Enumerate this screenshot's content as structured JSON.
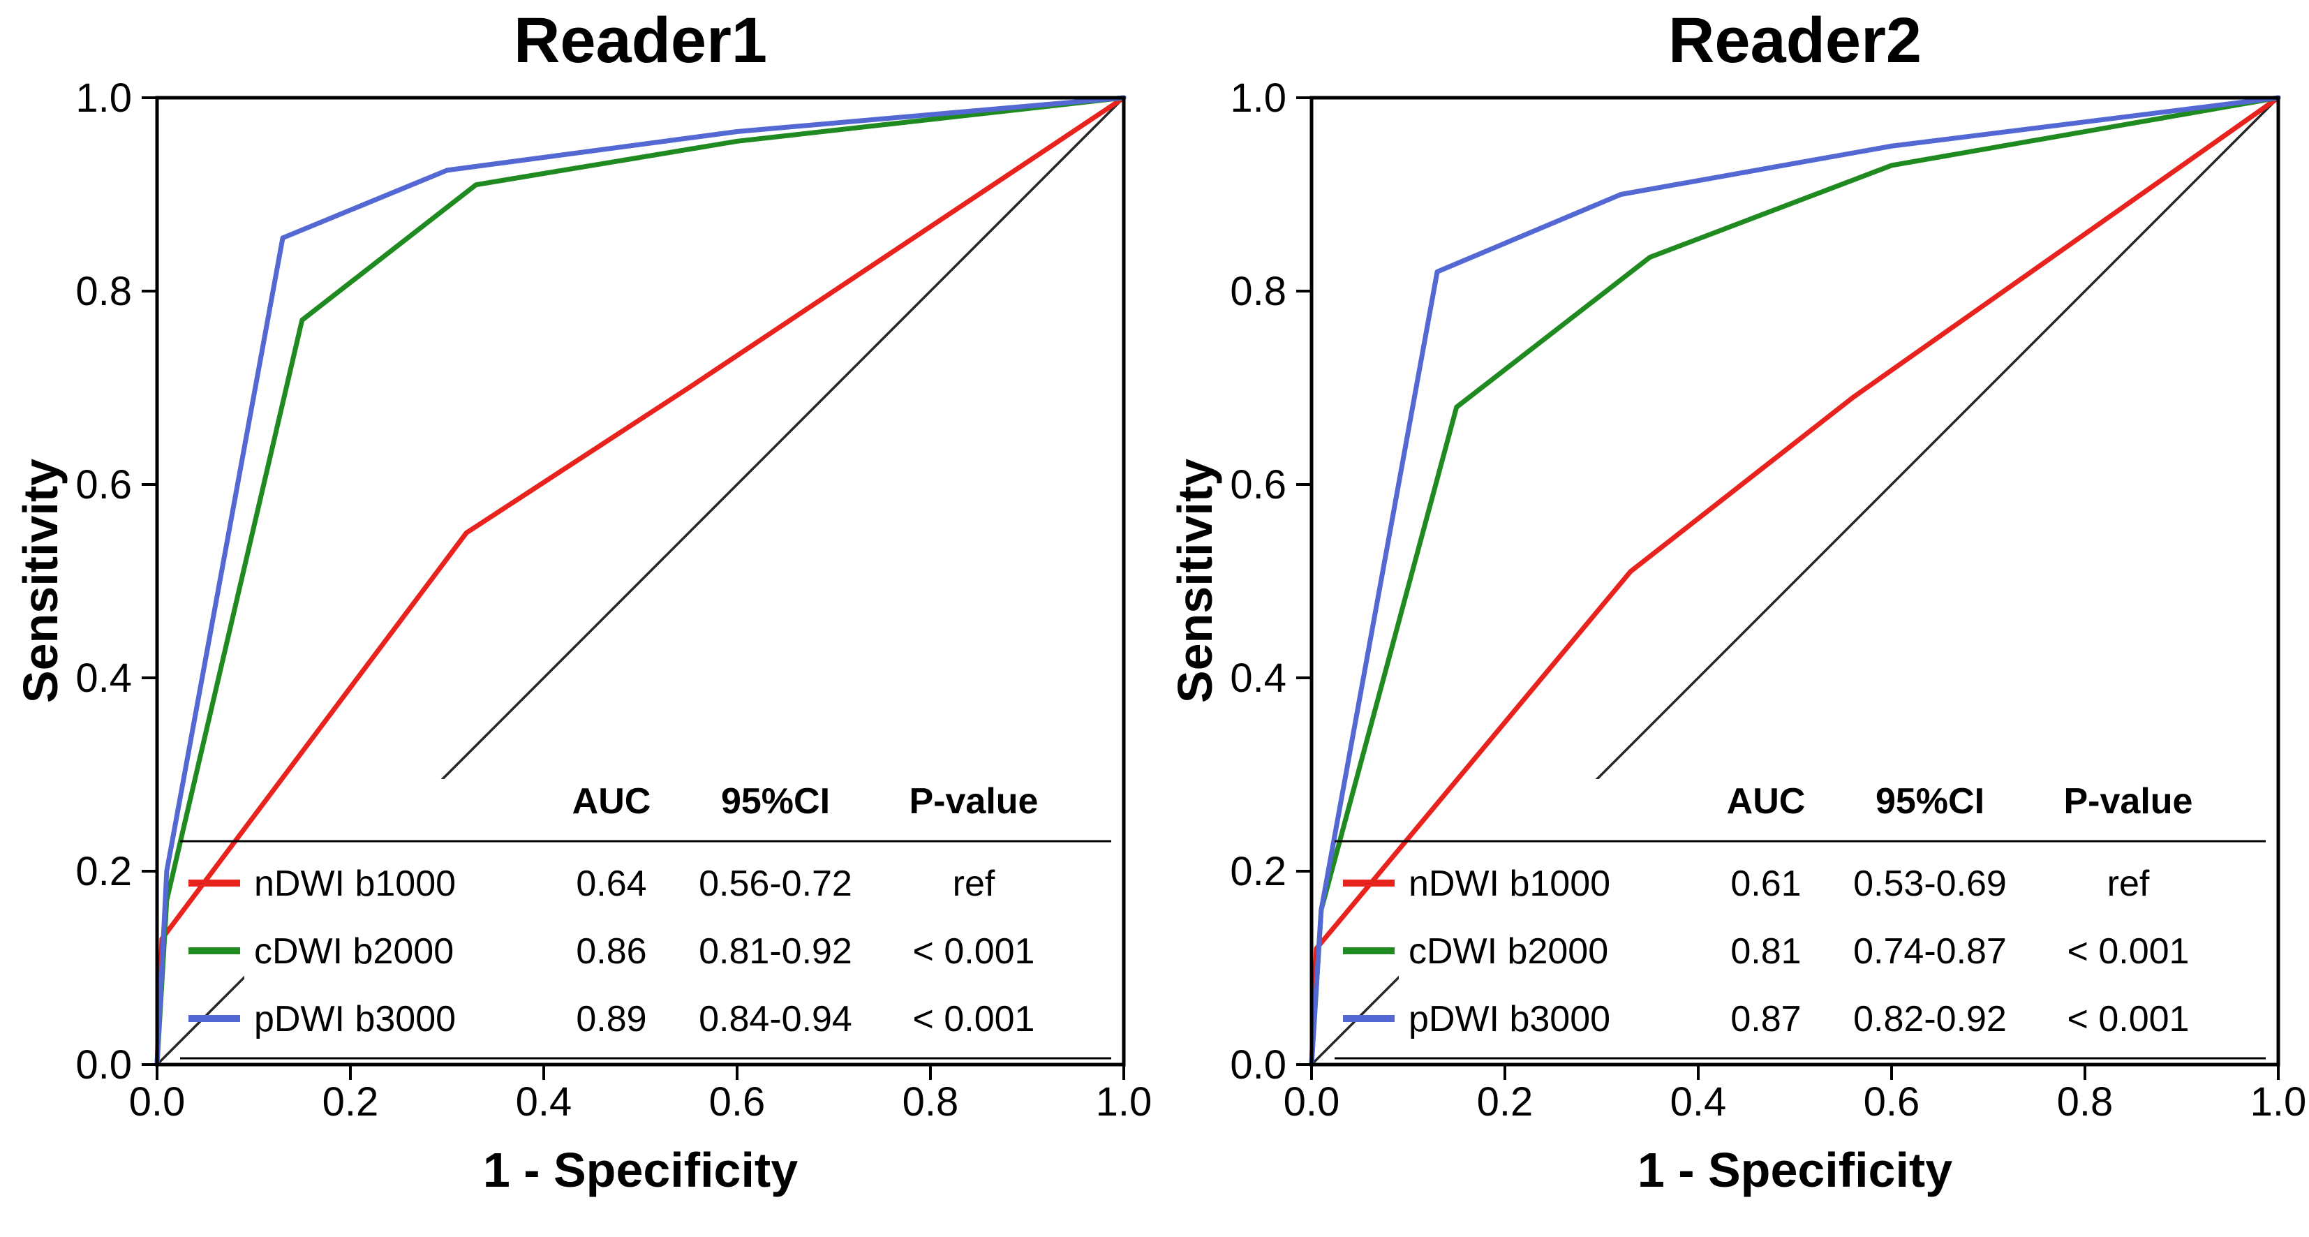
{
  "figure": {
    "x_tick_labels": [
      "0.0",
      "0.2",
      "0.4",
      "0.6",
      "0.8",
      "1.0"
    ],
    "y_tick_labels": [
      "0.0",
      "0.2",
      "0.4",
      "0.6",
      "0.8",
      "1.0"
    ]
  },
  "chart_data": [
    {
      "type": "line",
      "title": "Reader1",
      "xlabel": "1 - Specificity",
      "ylabel": "Sensitivity",
      "xlim": [
        0,
        1
      ],
      "ylim": [
        0,
        1
      ],
      "grid": false,
      "legend_position": "lower right",
      "legend_table": {
        "headers": [
          "AUC",
          "95%CI",
          "P-value"
        ],
        "rows": [
          {
            "label": "nDWI b1000",
            "color": "#e8231e",
            "auc": "0.64",
            "ci": "0.56-0.72",
            "p": "ref"
          },
          {
            "label": "cDWI b2000",
            "color": "#1f8a1f",
            "auc": "0.86",
            "ci": "0.81-0.92",
            "p": "< 0.001"
          },
          {
            "label": "pDWI b3000",
            "color": "#5468d4",
            "auc": "0.89",
            "ci": "0.84-0.94",
            "p": "< 0.001"
          }
        ]
      },
      "series": [
        {
          "name": "reference",
          "color": "#262626",
          "points": [
            [
              0,
              0
            ],
            [
              1,
              1
            ]
          ]
        },
        {
          "name": "nDWI b1000",
          "color": "#e8231e",
          "points": [
            [
              0,
              0
            ],
            [
              0.005,
              0.13
            ],
            [
              0.32,
              0.55
            ],
            [
              0.55,
              0.7
            ],
            [
              1,
              1
            ]
          ]
        },
        {
          "name": "cDWI b2000",
          "color": "#1f8a1f",
          "points": [
            [
              0,
              0
            ],
            [
              0.01,
              0.17
            ],
            [
              0.15,
              0.77
            ],
            [
              0.33,
              0.91
            ],
            [
              0.6,
              0.955
            ],
            [
              1,
              1
            ]
          ]
        },
        {
          "name": "pDWI b3000",
          "color": "#5468d4",
          "points": [
            [
              0,
              0
            ],
            [
              0.01,
              0.2
            ],
            [
              0.13,
              0.855
            ],
            [
              0.3,
              0.925
            ],
            [
              0.6,
              0.965
            ],
            [
              1,
              1
            ]
          ]
        }
      ]
    },
    {
      "type": "line",
      "title": "Reader2",
      "xlabel": "1 - Specificity",
      "ylabel": "Sensitivity",
      "xlim": [
        0,
        1
      ],
      "ylim": [
        0,
        1
      ],
      "grid": false,
      "legend_position": "lower right",
      "legend_table": {
        "headers": [
          "AUC",
          "95%CI",
          "P-value"
        ],
        "rows": [
          {
            "label": "nDWI b1000",
            "color": "#e8231e",
            "auc": "0.61",
            "ci": "0.53-0.69",
            "p": "ref"
          },
          {
            "label": "cDWI b2000",
            "color": "#1f8a1f",
            "auc": "0.81",
            "ci": "0.74-0.87",
            "p": "< 0.001"
          },
          {
            "label": "pDWI b3000",
            "color": "#5468d4",
            "auc": "0.87",
            "ci": "0.82-0.92",
            "p": "< 0.001"
          }
        ]
      },
      "series": [
        {
          "name": "reference",
          "color": "#262626",
          "points": [
            [
              0,
              0
            ],
            [
              1,
              1
            ]
          ]
        },
        {
          "name": "nDWI b1000",
          "color": "#e8231e",
          "points": [
            [
              0,
              0
            ],
            [
              0.005,
              0.12
            ],
            [
              0.33,
              0.51
            ],
            [
              0.56,
              0.69
            ],
            [
              1,
              1
            ]
          ]
        },
        {
          "name": "cDWI b2000",
          "color": "#1f8a1f",
          "points": [
            [
              0,
              0
            ],
            [
              0.01,
              0.16
            ],
            [
              0.15,
              0.68
            ],
            [
              0.35,
              0.835
            ],
            [
              0.6,
              0.93
            ],
            [
              1,
              1
            ]
          ]
        },
        {
          "name": "pDWI b3000",
          "color": "#5468d4",
          "points": [
            [
              0,
              0
            ],
            [
              0.01,
              0.16
            ],
            [
              0.13,
              0.82
            ],
            [
              0.32,
              0.9
            ],
            [
              0.6,
              0.95
            ],
            [
              1,
              1
            ]
          ]
        }
      ]
    }
  ]
}
